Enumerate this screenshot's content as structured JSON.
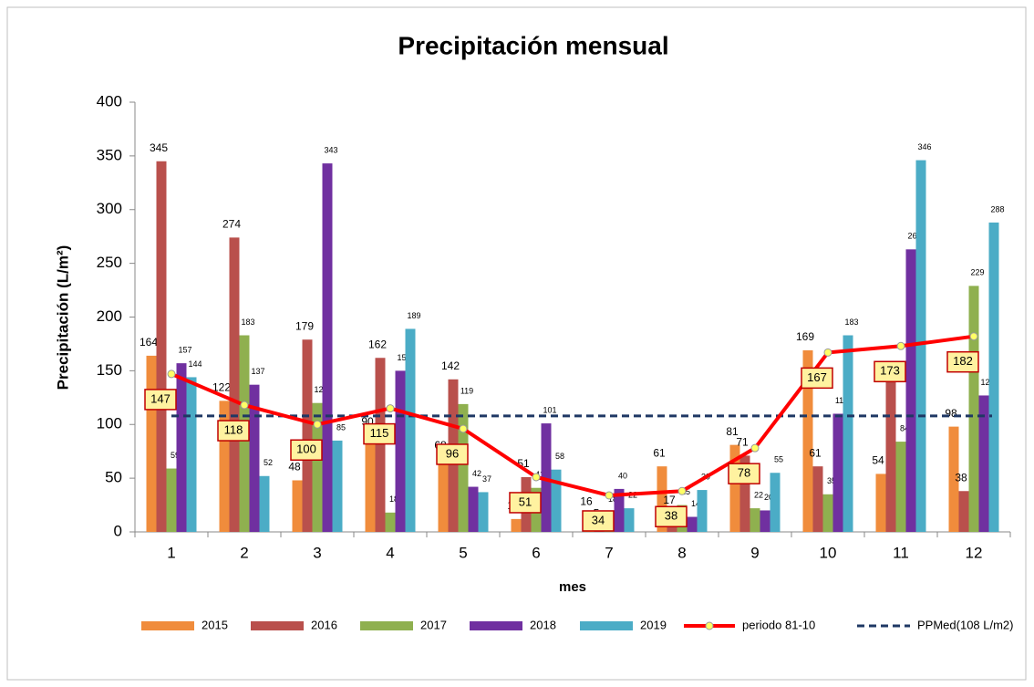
{
  "chart_data": {
    "type": "bar",
    "title": "Precipitación mensual",
    "x_label": "mes",
    "y_label": "Precipitación (L/m²)",
    "categories": [
      "1",
      "2",
      "3",
      "4",
      "5",
      "6",
      "7",
      "8",
      "9",
      "10",
      "11",
      "12"
    ],
    "series": [
      {
        "name": "2015",
        "color": "#f08c3c",
        "values": [
          164,
          122,
          48,
          90,
          68,
          12,
          16,
          61,
          81,
          169,
          54,
          98
        ]
      },
      {
        "name": "2016",
        "color": "#b9504c",
        "values": [
          345,
          274,
          179,
          162,
          142,
          51,
          5,
          17,
          71,
          61,
          142,
          38
        ]
      },
      {
        "name": "2017",
        "color": "#8fb04f",
        "values": [
          59,
          183,
          120,
          18,
          119,
          41,
          18,
          25,
          22,
          35,
          84,
          229
        ]
      },
      {
        "name": "2018",
        "color": "#7030a0",
        "values": [
          157,
          137,
          343,
          150,
          42,
          101,
          40,
          14,
          20,
          110,
          263,
          127
        ]
      },
      {
        "name": "2019",
        "color": "#4bacc6",
        "values": [
          144,
          52,
          85,
          189,
          37,
          58,
          22,
          39,
          55,
          183,
          346,
          288
        ]
      },
      {
        "name": "periodo 81-10",
        "type": "line",
        "color": "#ff0000",
        "marker_color": "#ffff66",
        "values": [
          147,
          118,
          100,
          115,
          96,
          51,
          34,
          38,
          78,
          167,
          173,
          182
        ]
      }
    ],
    "reference_line": {
      "name": "PPMed(108 L/m2)",
      "value": 108,
      "color": "#1f3864",
      "dashed": true
    },
    "ylim": [
      0,
      400
    ],
    "yticks": [
      0,
      50,
      100,
      150,
      200,
      250,
      300,
      350,
      400
    ],
    "grid": false,
    "legend": "bottom"
  }
}
